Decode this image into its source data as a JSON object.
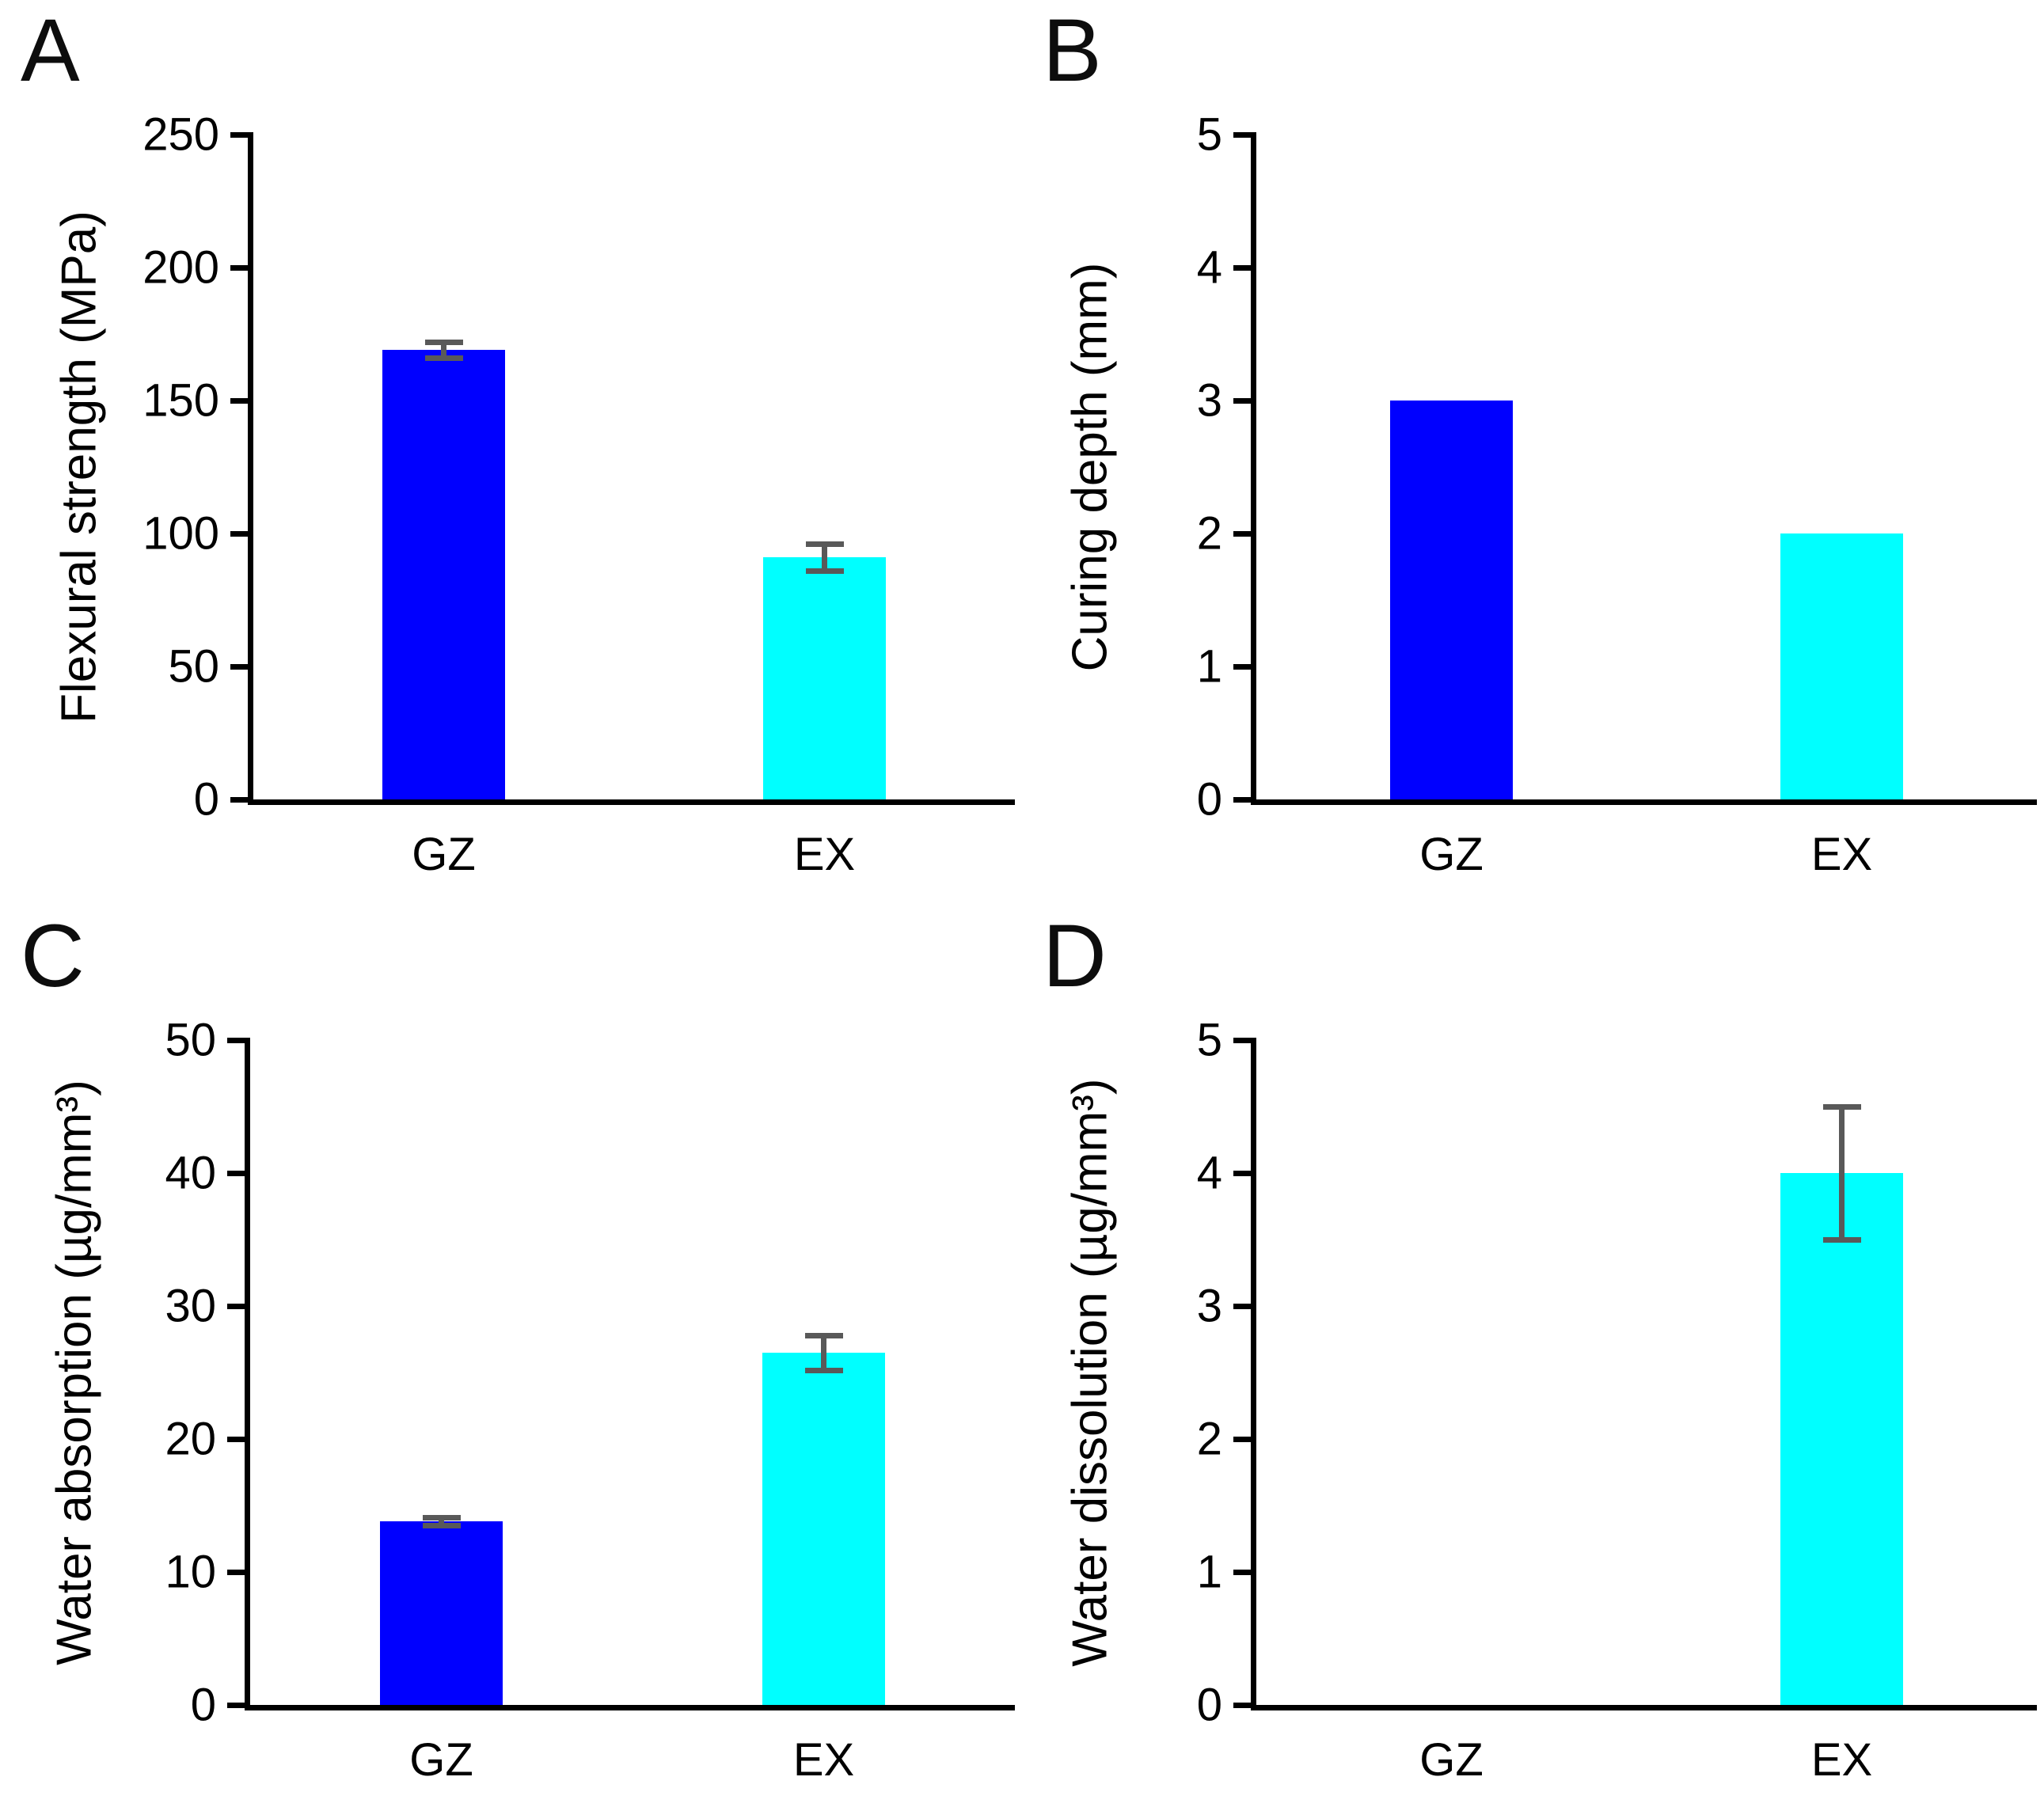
{
  "figure": {
    "groups": [
      "GZ",
      "EX"
    ],
    "palette": {
      "gz_bar": "#0000ff",
      "ex_bar": "#00ffff",
      "error_bar": "#595959",
      "axis": "#000000",
      "text": "#000000",
      "background": "#ffffff"
    }
  },
  "chart_data": [
    {
      "type": "bar",
      "panel": "A",
      "ylabel": "Flexural strength (MPa)",
      "xlabel": "",
      "categories": [
        "GZ",
        "EX"
      ],
      "values": [
        169,
        91
      ],
      "errors": [
        3,
        5
      ],
      "ylim": [
        0,
        250
      ],
      "yticks": [
        "0",
        "50",
        "100",
        "150",
        "200",
        "250"
      ],
      "ytick_values": [
        0,
        50,
        100,
        150,
        200,
        250
      ],
      "bar_colors": [
        "#0000ff",
        "#00ffff"
      ],
      "grid": false,
      "legend": "none"
    },
    {
      "type": "bar",
      "panel": "B",
      "ylabel": "Curing depth (mm)",
      "xlabel": "",
      "categories": [
        "GZ",
        "EX"
      ],
      "values": [
        3,
        2
      ],
      "errors": [
        0,
        0
      ],
      "ylim": [
        0,
        5
      ],
      "yticks": [
        "0",
        "1",
        "2",
        "3",
        "4",
        "5"
      ],
      "ytick_values": [
        0,
        1,
        2,
        3,
        4,
        5
      ],
      "bar_colors": [
        "#0000ff",
        "#00ffff"
      ],
      "grid": false,
      "legend": "none"
    },
    {
      "type": "bar",
      "panel": "C",
      "ylabel": "Water absorption (µg/mm³)",
      "xlabel": "",
      "categories": [
        "GZ",
        "EX"
      ],
      "values": [
        13.8,
        26.5
      ],
      "errors": [
        0.3,
        1.3
      ],
      "ylim": [
        0,
        50
      ],
      "yticks": [
        "0",
        "10",
        "20",
        "30",
        "40",
        "50"
      ],
      "ytick_values": [
        0,
        10,
        20,
        30,
        40,
        50
      ],
      "bar_colors": [
        "#0000ff",
        "#00ffff"
      ],
      "grid": false,
      "legend": "none"
    },
    {
      "type": "bar",
      "panel": "D",
      "ylabel": "Water dissolution (µg/mm³)",
      "xlabel": "",
      "categories": [
        "GZ",
        "EX"
      ],
      "values": [
        0,
        4
      ],
      "errors": [
        0,
        0.5
      ],
      "ylim": [
        0,
        5
      ],
      "yticks": [
        "0",
        "1",
        "2",
        "3",
        "4",
        "5"
      ],
      "ytick_values": [
        0,
        1,
        2,
        3,
        4,
        5
      ],
      "bar_colors": [
        "#0000ff",
        "#00ffff"
      ],
      "grid": false,
      "legend": "none"
    }
  ]
}
